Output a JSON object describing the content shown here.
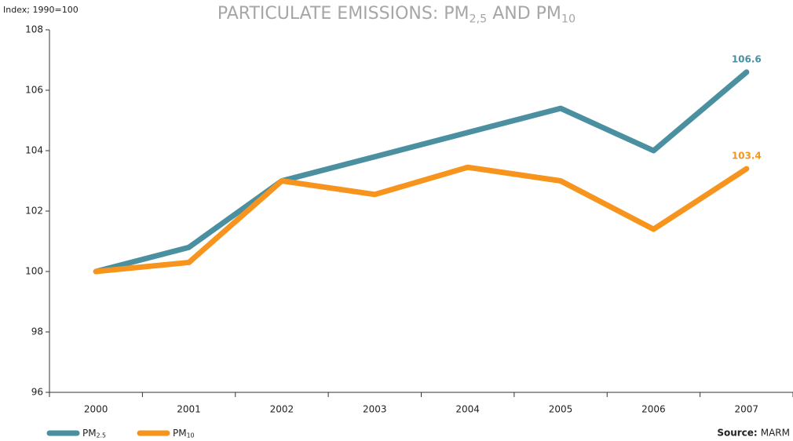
{
  "chart_data": {
    "type": "line",
    "title": "PARTICULATE EMISSIONS: PM2,5 AND PM10",
    "y_axis_label": "Index; 1990=100",
    "source_label": "Source:",
    "source": "MARM",
    "categories": [
      "2000",
      "2001",
      "2002",
      "2003",
      "2004",
      "2005",
      "2006",
      "2007"
    ],
    "series": [
      {
        "name": "PM2.5",
        "color": "#4a90a0",
        "values": [
          100,
          100.8,
          103,
          103.8,
          104.6,
          105.4,
          104,
          106.6
        ]
      },
      {
        "name": "PM10",
        "color": "#f7941d",
        "values": [
          100,
          100.3,
          103,
          102.55,
          103.45,
          103,
          101.4,
          103.4
        ]
      }
    ],
    "end_labels": [
      true,
      true
    ],
    "ylim": [
      96,
      108
    ],
    "yticks": [
      96,
      98,
      100,
      102,
      104,
      106,
      108
    ],
    "grid": false
  }
}
